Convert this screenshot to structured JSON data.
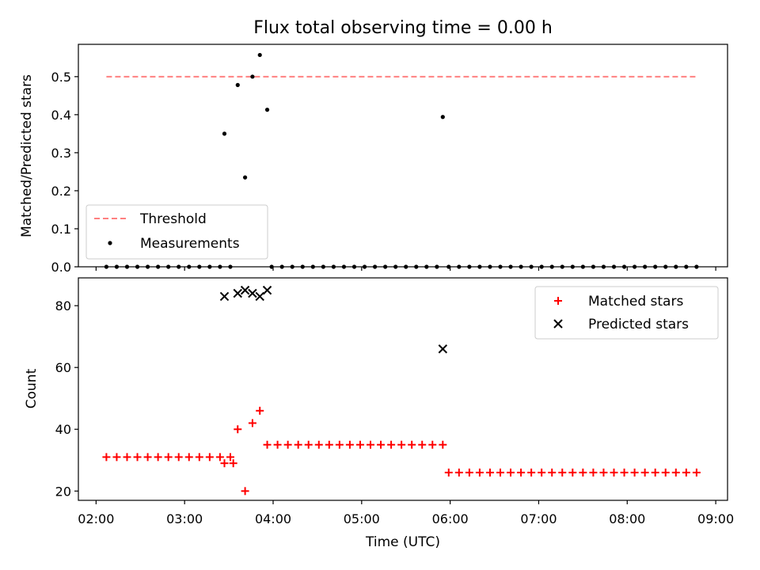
{
  "chart_data": [
    {
      "type": "scatter",
      "title": "Flux total observing time = 0.00 h",
      "xlabel": "",
      "ylabel": "Matched/Predicted stars",
      "xlim": [
        "01:48",
        "09:08"
      ],
      "ylim": [
        0,
        0.585
      ],
      "yticks": [
        "0.0",
        "0.1",
        "0.2",
        "0.3",
        "0.4",
        "0.5"
      ],
      "grid": false,
      "legend_position": "lower-left",
      "threshold": {
        "name": "Threshold",
        "value": 0.5,
        "x_range": [
          "02:07",
          "08:47"
        ],
        "color": "#ff8080"
      },
      "measurements": {
        "name": "Measurements",
        "color": "#000000",
        "points": [
          [
            "02:07",
            0
          ],
          [
            "02:14",
            0
          ],
          [
            "02:21",
            0
          ],
          [
            "02:28",
            0
          ],
          [
            "02:35",
            0
          ],
          [
            "02:42",
            0
          ],
          [
            "02:49",
            0
          ],
          [
            "02:56",
            0
          ],
          [
            "03:03",
            0
          ],
          [
            "03:10",
            0
          ],
          [
            "03:17",
            0
          ],
          [
            "03:24",
            0
          ],
          [
            "03:27",
            0.35
          ],
          [
            "03:31",
            0
          ],
          [
            "03:36",
            0.478
          ],
          [
            "03:41",
            0.235
          ],
          [
            "03:46",
            0.5
          ],
          [
            "03:51",
            0.557
          ],
          [
            "03:56",
            0.413
          ],
          [
            "03:59",
            0
          ],
          [
            "04:06",
            0
          ],
          [
            "04:13",
            0
          ],
          [
            "04:20",
            0
          ],
          [
            "04:27",
            0
          ],
          [
            "04:34",
            0
          ],
          [
            "04:41",
            0
          ],
          [
            "04:48",
            0
          ],
          [
            "04:55",
            0
          ],
          [
            "05:02",
            0
          ],
          [
            "05:09",
            0
          ],
          [
            "05:16",
            0
          ],
          [
            "05:23",
            0
          ],
          [
            "05:30",
            0
          ],
          [
            "05:37",
            0
          ],
          [
            "05:44",
            0
          ],
          [
            "05:51",
            0
          ],
          [
            "05:55",
            0.394
          ],
          [
            "05:59",
            0
          ],
          [
            "06:06",
            0
          ],
          [
            "06:13",
            0
          ],
          [
            "06:20",
            0
          ],
          [
            "06:27",
            0
          ],
          [
            "06:34",
            0
          ],
          [
            "06:41",
            0
          ],
          [
            "06:48",
            0
          ],
          [
            "06:55",
            0
          ],
          [
            "07:02",
            0
          ],
          [
            "07:09",
            0
          ],
          [
            "07:16",
            0
          ],
          [
            "07:23",
            0
          ],
          [
            "07:30",
            0
          ],
          [
            "07:37",
            0
          ],
          [
            "07:44",
            0
          ],
          [
            "07:51",
            0
          ],
          [
            "07:58",
            0
          ],
          [
            "08:05",
            0
          ],
          [
            "08:12",
            0
          ],
          [
            "08:19",
            0
          ],
          [
            "08:26",
            0
          ],
          [
            "08:33",
            0
          ],
          [
            "08:40",
            0
          ],
          [
            "08:47",
            0
          ]
        ]
      }
    },
    {
      "type": "scatter",
      "title": "",
      "xlabel": "Time (UTC)",
      "ylabel": "Count",
      "xlim": [
        "01:48",
        "09:08"
      ],
      "ylim": [
        17,
        89
      ],
      "yticks": [
        "20",
        "40",
        "60",
        "80"
      ],
      "xticks": [
        "02:00",
        "03:00",
        "04:00",
        "05:00",
        "06:00",
        "07:00",
        "08:00",
        "09:00"
      ],
      "grid": false,
      "legend_position": "upper-right",
      "series": [
        {
          "name": "Matched stars",
          "marker": "+",
          "color": "#ff0000",
          "points": [
            [
              "02:07",
              31
            ],
            [
              "02:14",
              31
            ],
            [
              "02:21",
              31
            ],
            [
              "02:28",
              31
            ],
            [
              "02:35",
              31
            ],
            [
              "02:42",
              31
            ],
            [
              "02:49",
              31
            ],
            [
              "02:56",
              31
            ],
            [
              "03:03",
              31
            ],
            [
              "03:10",
              31
            ],
            [
              "03:17",
              31
            ],
            [
              "03:24",
              31
            ],
            [
              "03:31",
              31
            ],
            [
              "03:27",
              29
            ],
            [
              "03:33",
              29
            ],
            [
              "03:36",
              40
            ],
            [
              "03:41",
              20
            ],
            [
              "03:46",
              42
            ],
            [
              "03:51",
              46
            ],
            [
              "03:56",
              35
            ],
            [
              "04:03",
              35
            ],
            [
              "04:10",
              35
            ],
            [
              "04:17",
              35
            ],
            [
              "04:24",
              35
            ],
            [
              "04:31",
              35
            ],
            [
              "04:38",
              35
            ],
            [
              "04:45",
              35
            ],
            [
              "04:52",
              35
            ],
            [
              "04:59",
              35
            ],
            [
              "05:06",
              35
            ],
            [
              "05:13",
              35
            ],
            [
              "05:20",
              35
            ],
            [
              "05:27",
              35
            ],
            [
              "05:34",
              35
            ],
            [
              "05:41",
              35
            ],
            [
              "05:48",
              35
            ],
            [
              "05:55",
              35
            ],
            [
              "05:59",
              26
            ],
            [
              "06:06",
              26
            ],
            [
              "06:13",
              26
            ],
            [
              "06:20",
              26
            ],
            [
              "06:27",
              26
            ],
            [
              "06:34",
              26
            ],
            [
              "06:41",
              26
            ],
            [
              "06:48",
              26
            ],
            [
              "06:55",
              26
            ],
            [
              "07:02",
              26
            ],
            [
              "07:09",
              26
            ],
            [
              "07:16",
              26
            ],
            [
              "07:23",
              26
            ],
            [
              "07:30",
              26
            ],
            [
              "07:37",
              26
            ],
            [
              "07:44",
              26
            ],
            [
              "07:51",
              26
            ],
            [
              "07:58",
              26
            ],
            [
              "08:05",
              26
            ],
            [
              "08:12",
              26
            ],
            [
              "08:19",
              26
            ],
            [
              "08:26",
              26
            ],
            [
              "08:33",
              26
            ],
            [
              "08:40",
              26
            ],
            [
              "08:47",
              26
            ]
          ]
        },
        {
          "name": "Predicted stars",
          "marker": "x",
          "color": "#000000",
          "points": [
            [
              "03:27",
              83
            ],
            [
              "03:36",
              84
            ],
            [
              "03:41",
              85
            ],
            [
              "03:46",
              84
            ],
            [
              "03:51",
              83
            ],
            [
              "03:56",
              85
            ],
            [
              "05:55",
              66
            ]
          ]
        }
      ]
    }
  ]
}
